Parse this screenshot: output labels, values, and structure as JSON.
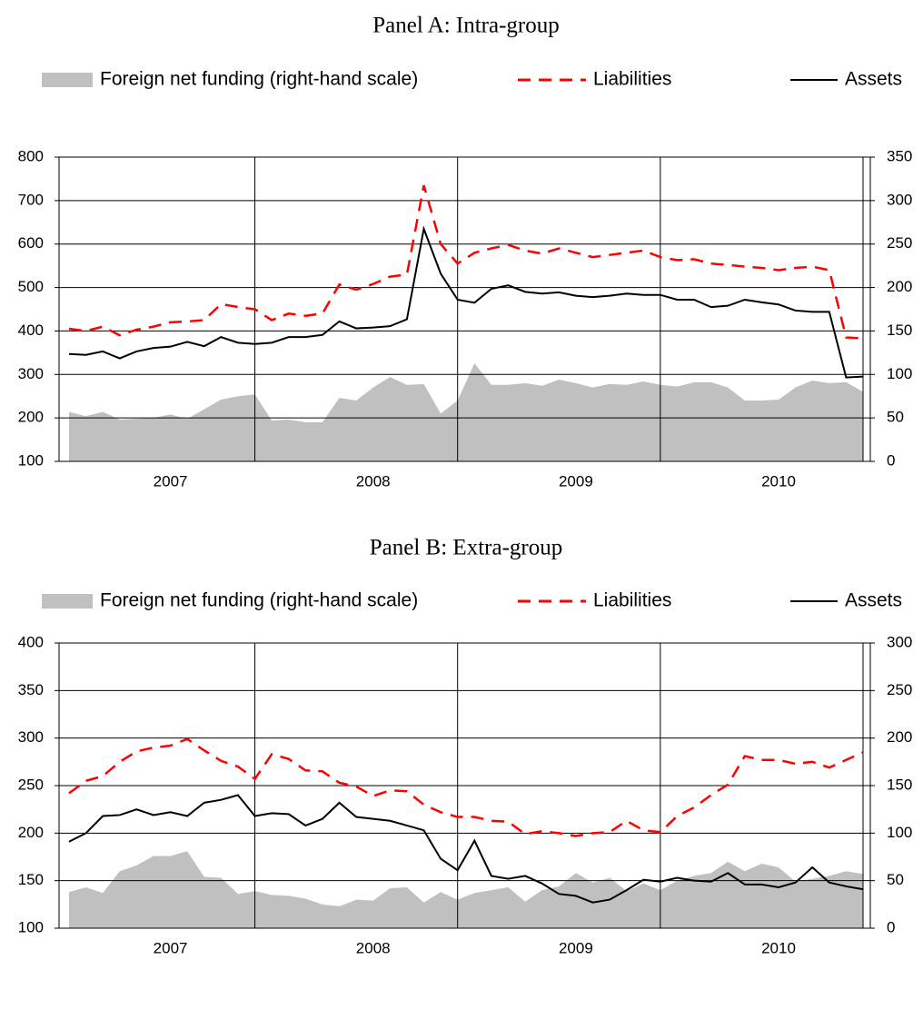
{
  "chart_data": [
    {
      "type": "line",
      "title": "Panel A: Intra-group",
      "grid": true,
      "categories": [
        null,
        null,
        null,
        null,
        null,
        null,
        "2007",
        null,
        null,
        null,
        null,
        null,
        null,
        null,
        null,
        null,
        null,
        null,
        "2008",
        null,
        null,
        null,
        null,
        null,
        null,
        null,
        null,
        null,
        null,
        null,
        "2009",
        null,
        null,
        null,
        null,
        null,
        null,
        null,
        null,
        null,
        null,
        null,
        "2010",
        null,
        null,
        null,
        null,
        null
      ],
      "ylim": [
        100,
        800
      ],
      "yticks": [
        100,
        200,
        300,
        400,
        500,
        600,
        700,
        800
      ],
      "y2lim": [
        0,
        350
      ],
      "y2ticks": [
        0,
        50,
        100,
        150,
        200,
        250,
        300,
        350
      ],
      "series": [
        {
          "name": "Foreign net funding (right-hand scale)",
          "color": "#c0c0c0",
          "style": "area",
          "axis": "y2",
          "values": [
            57,
            52,
            57,
            48,
            49,
            50,
            54,
            49,
            60,
            71,
            75,
            77,
            47,
            48,
            45,
            45,
            73,
            70,
            85,
            97,
            88,
            89,
            55,
            70,
            113,
            88,
            88,
            90,
            87,
            94,
            90,
            85,
            89,
            88,
            92,
            88,
            86,
            91,
            91,
            85,
            70,
            70,
            71,
            85,
            93,
            90,
            91,
            80
          ]
        },
        {
          "name": "Liabilities",
          "color": "#ff0000",
          "style": "dashed",
          "values": [
            405,
            400,
            410,
            390,
            403,
            410,
            420,
            422,
            425,
            462,
            455,
            450,
            425,
            440,
            435,
            440,
            507,
            495,
            508,
            525,
            530,
            735,
            600,
            555,
            580,
            590,
            598,
            585,
            578,
            590,
            580,
            570,
            575,
            580,
            585,
            570,
            563,
            565,
            555,
            552,
            548,
            545,
            540,
            545,
            548,
            540,
            385,
            383
          ]
        },
        {
          "name": "Assets",
          "color": "#000000",
          "style": "solid",
          "values": [
            347,
            345,
            353,
            337,
            353,
            361,
            364,
            375,
            365,
            386,
            373,
            370,
            373,
            386,
            386,
            391,
            422,
            406,
            408,
            411,
            427,
            635,
            532,
            472,
            465,
            497,
            505,
            490,
            486,
            489,
            481,
            478,
            481,
            486,
            483,
            483,
            472,
            472,
            455,
            458,
            472,
            466,
            461,
            447,
            444,
            444,
            293,
            295
          ]
        }
      ]
    },
    {
      "type": "line",
      "title": "Panel B: Extra-group",
      "grid": true,
      "categories": [
        null,
        null,
        null,
        null,
        null,
        null,
        "2007",
        null,
        null,
        null,
        null,
        null,
        null,
        null,
        null,
        null,
        null,
        null,
        "2008",
        null,
        null,
        null,
        null,
        null,
        null,
        null,
        null,
        null,
        null,
        null,
        "2009",
        null,
        null,
        null,
        null,
        null,
        null,
        null,
        null,
        null,
        null,
        null,
        "2010",
        null,
        null,
        null,
        null,
        null
      ],
      "ylim": [
        100,
        400
      ],
      "yticks": [
        100,
        150,
        200,
        250,
        300,
        350,
        400
      ],
      "y2lim": [
        0,
        300
      ],
      "y2ticks": [
        0,
        50,
        100,
        150,
        200,
        250,
        300
      ],
      "series": [
        {
          "name": "Foreign net funding (right-hand scale)",
          "color": "#c0c0c0",
          "style": "area",
          "axis": "y2",
          "values": [
            38,
            43,
            37,
            60,
            66,
            76,
            76,
            81,
            54,
            53,
            36,
            39,
            35,
            34,
            31,
            25,
            23,
            30,
            29,
            42,
            43,
            27,
            38,
            30,
            37,
            40,
            43,
            28,
            40,
            44,
            58,
            48,
            53,
            39,
            47,
            40,
            50,
            55,
            58,
            70,
            60,
            68,
            64,
            49,
            52,
            55,
            60,
            57
          ]
        },
        {
          "name": "Liabilities",
          "color": "#ff0000",
          "style": "dashed",
          "values": [
            242,
            255,
            260,
            275,
            286,
            290,
            292,
            299,
            287,
            276,
            270,
            257,
            283,
            278,
            266,
            265,
            253,
            249,
            239,
            245,
            244,
            230,
            222,
            217,
            217,
            213,
            212,
            199,
            202,
            200,
            197,
            200,
            201,
            213,
            203,
            201,
            218,
            227,
            240,
            251,
            281,
            277,
            277,
            273,
            275,
            269,
            277,
            285
          ]
        },
        {
          "name": "Assets",
          "color": "#000000",
          "style": "solid",
          "values": [
            191,
            200,
            218,
            219,
            225,
            219,
            222,
            218,
            232,
            235,
            240,
            218,
            221,
            220,
            208,
            215,
            232,
            217,
            215,
            213,
            208,
            203,
            173,
            161,
            192,
            155,
            152,
            155,
            147,
            136,
            134,
            127,
            130,
            140,
            151,
            149,
            153,
            150,
            149,
            158,
            146,
            146,
            143,
            148,
            164,
            148,
            144,
            141
          ]
        }
      ]
    }
  ]
}
